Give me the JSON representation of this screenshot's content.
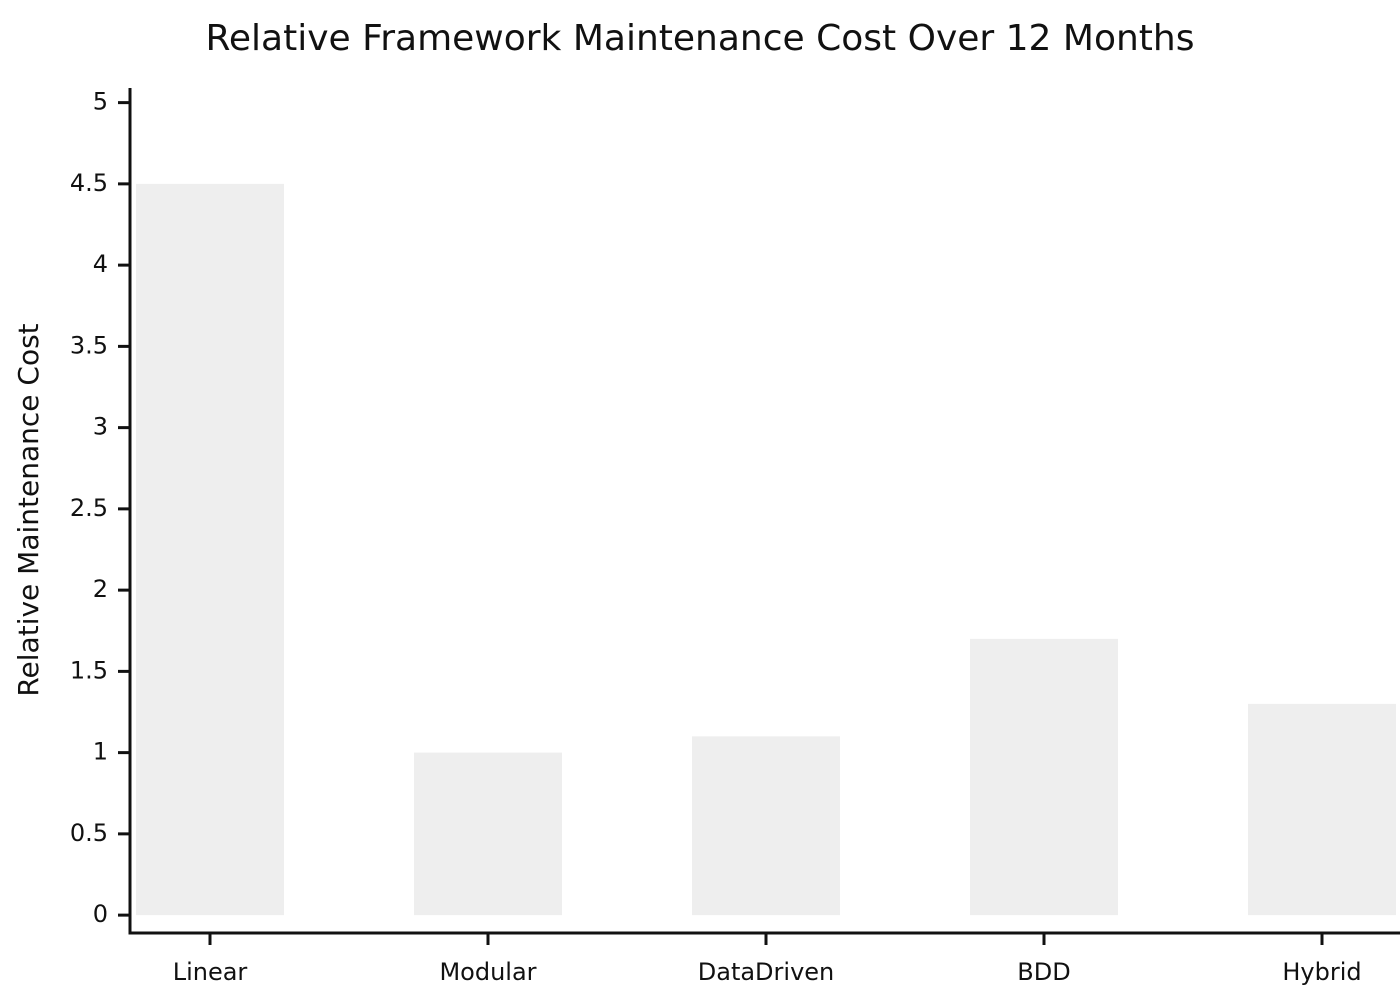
{
  "chart_data": {
    "type": "bar",
    "title": "Relative Framework Maintenance Cost Over 12 Months",
    "y_label": "Relative Maintenance Cost",
    "categories": [
      "Linear",
      "Modular",
      "DataDriven",
      "BDD",
      "Hybrid"
    ],
    "values": [
      4.5,
      1.0,
      1.1,
      1.7,
      1.3
    ],
    "color": "#eeeeee",
    "ylim": [
      -0.11,
      5.09
    ],
    "yticks": [
      0,
      0.5,
      1,
      1.5,
      2,
      2.5,
      3,
      3.5,
      4,
      4.5,
      5
    ],
    "grid": false
  }
}
